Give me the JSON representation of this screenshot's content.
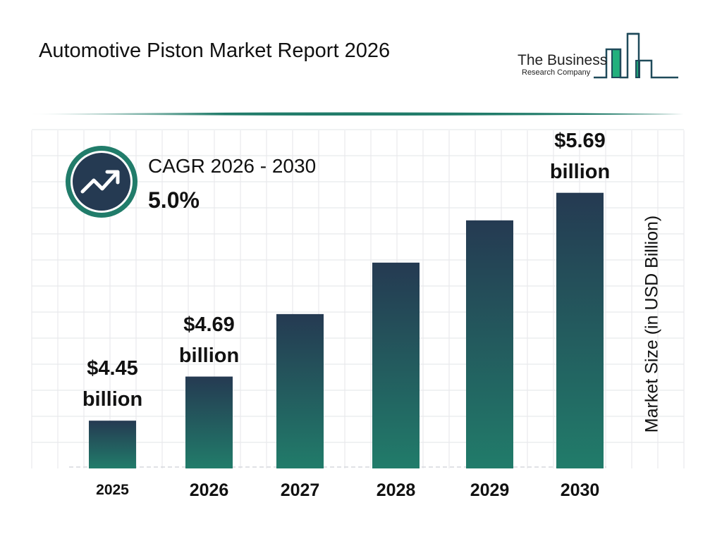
{
  "title": "Automotive Piston Market Report 2026",
  "logo": {
    "line1": "The Business",
    "line2": "Research Company"
  },
  "cagr": {
    "label": "CAGR 2026 - 2030",
    "value": "5.0%",
    "icon": "trending-up-icon"
  },
  "colors": {
    "bar_top": "#253a52",
    "bar_bottom": "#217c6a",
    "accent": "#217c6a",
    "grid": "#e8e9ec"
  },
  "chart_data": {
    "type": "bar",
    "categories": [
      "2025",
      "2026",
      "2027",
      "2028",
      "2029",
      "2030"
    ],
    "values": [
      4.45,
      4.69,
      5.03,
      5.31,
      5.54,
      5.69
    ],
    "data_labels": [
      {
        "index": 0,
        "line1": "$4.45",
        "line2": "billion"
      },
      {
        "index": 1,
        "line1": "$4.69",
        "line2": "billion"
      },
      {
        "index": 5,
        "line1": "$5.69",
        "line2": "billion"
      }
    ],
    "title": "",
    "xlabel": "",
    "ylabel": "Market Size (in USD Billion)",
    "grid": true,
    "ylim": [
      4.19,
      5.8
    ]
  }
}
